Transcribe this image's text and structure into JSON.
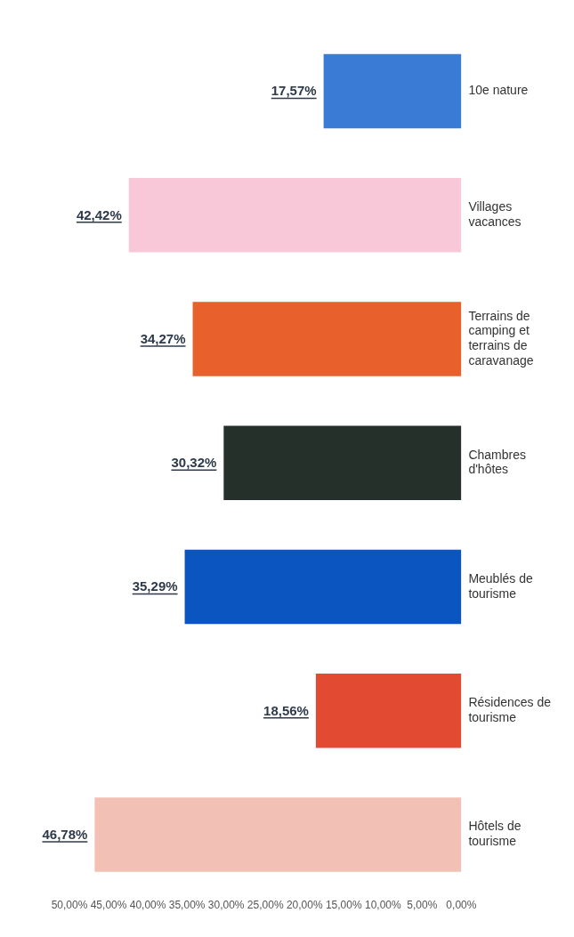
{
  "chart_data": {
    "type": "bar",
    "orientation": "horizontal",
    "categories": [
      "10e nature",
      "Villages vacances",
      "Terrains de camping et terrains de caravanage",
      "Chambres d'hôtes",
      "Meublés de tourisme",
      "Résidences de tourisme",
      "Hôtels de tourisme"
    ],
    "values": [
      17.57,
      42.42,
      34.27,
      30.32,
      35.29,
      18.56,
      46.78
    ],
    "colors": [
      "#3a7bd5",
      "#f9c8d8",
      "#e8602c",
      "#26302a",
      "#0a55c0",
      "#e24b32",
      "#f2c0b4"
    ],
    "value_labels": [
      "17,57%",
      "42,42%",
      "34,27%",
      "30,32%",
      "35,29%",
      "18,56%",
      "46,78%"
    ],
    "xlim": [
      50,
      0
    ],
    "xticks": [
      {
        "value": 50,
        "label": "50,00%"
      },
      {
        "value": 45,
        "label": "45,00%"
      },
      {
        "value": 40,
        "label": "40,00%"
      },
      {
        "value": 35,
        "label": "35,00%"
      },
      {
        "value": 30,
        "label": "30,00%"
      },
      {
        "value": 25,
        "label": "25,00%"
      },
      {
        "value": 20,
        "label": "20,00%"
      },
      {
        "value": 15,
        "label": "15,00%"
      },
      {
        "value": 10,
        "label": "10,00%"
      },
      {
        "value": 5,
        "label": "5,00%"
      },
      {
        "value": 0,
        "label": "0,00%"
      }
    ],
    "grid": false,
    "legend": false
  }
}
